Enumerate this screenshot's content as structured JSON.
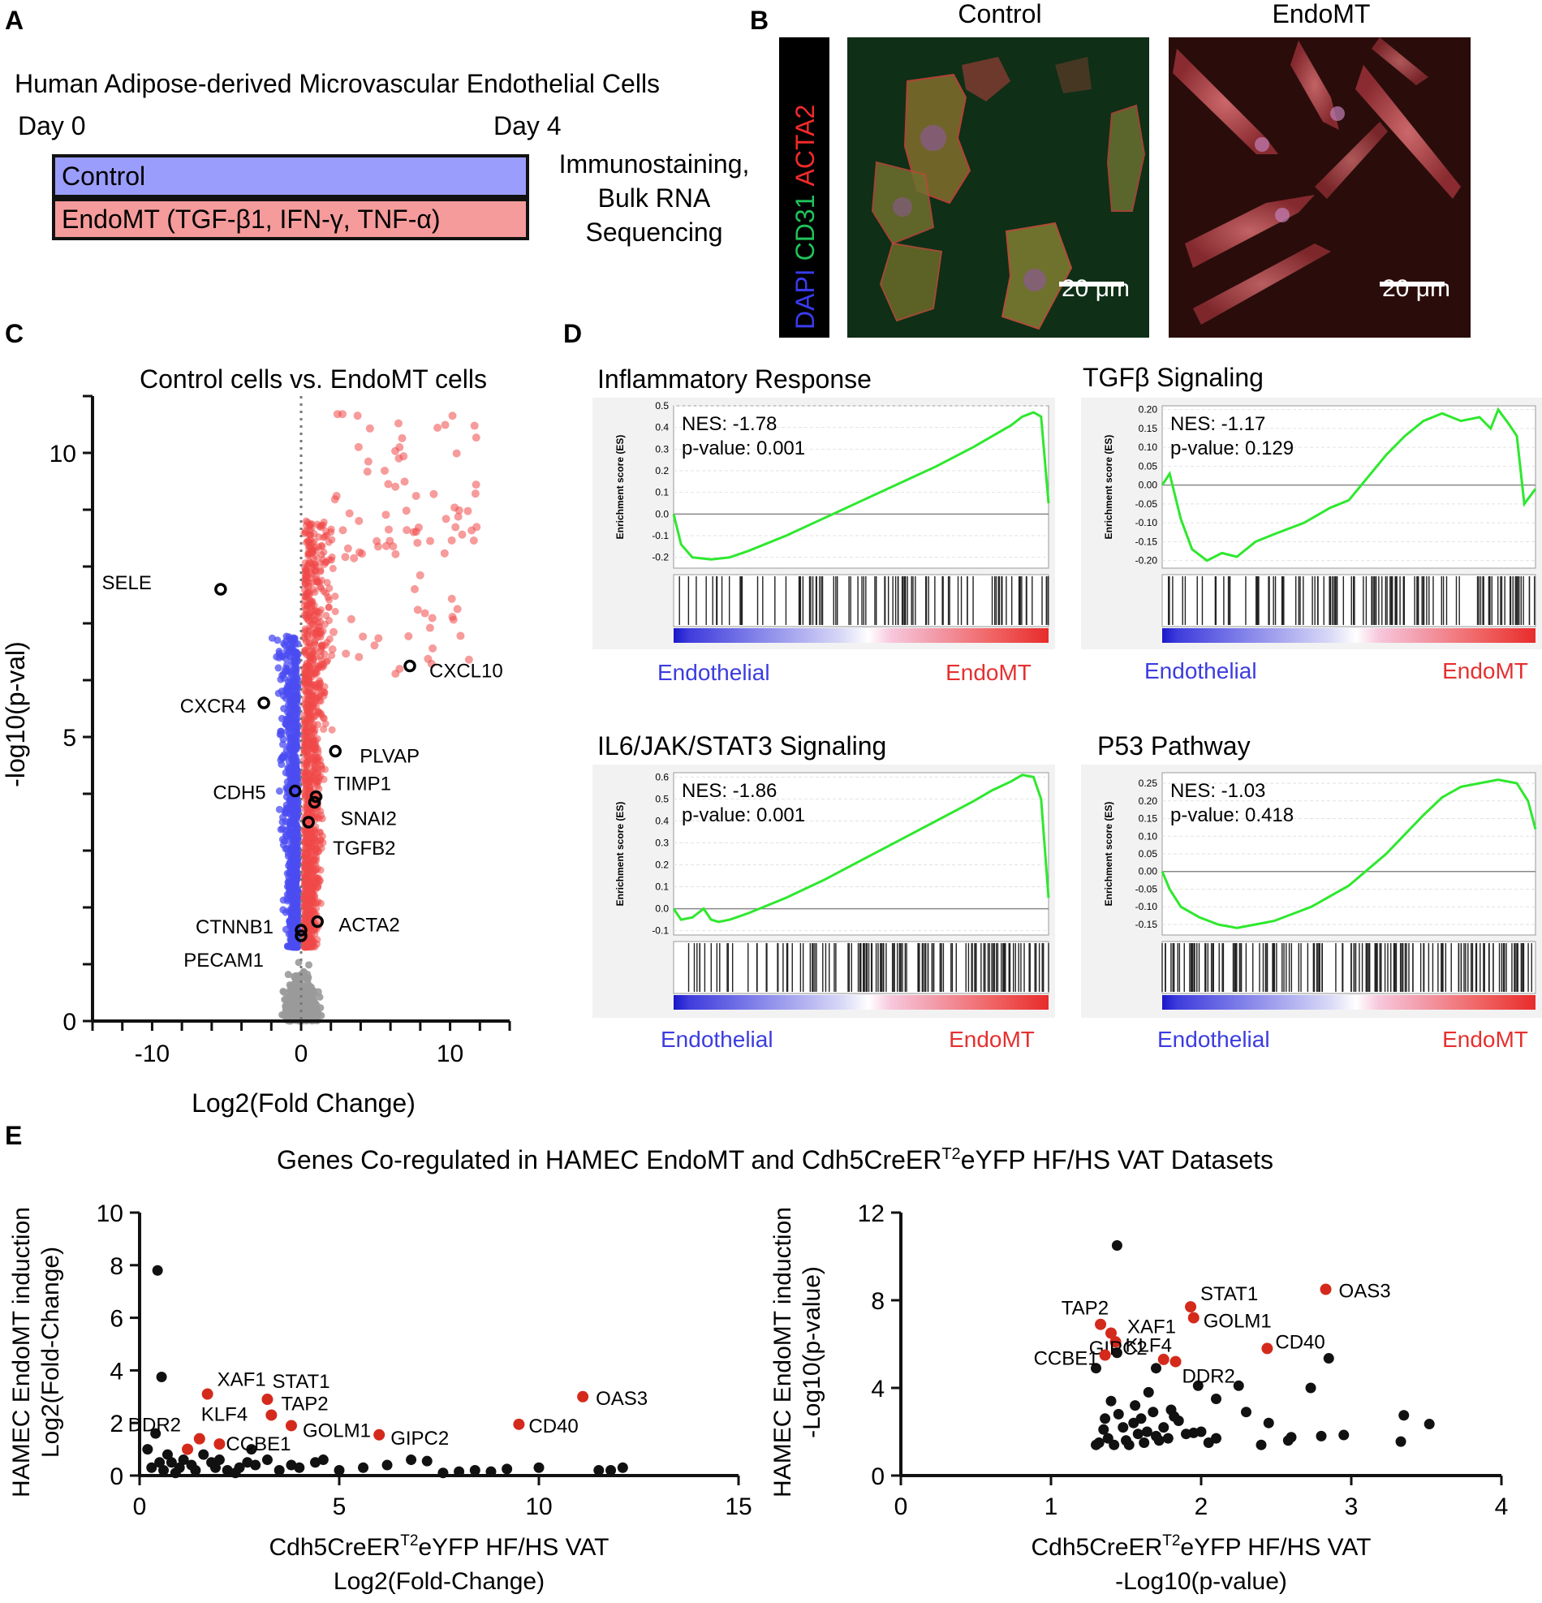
{
  "panel_a": {
    "letter": "A",
    "title": "Human Adipose-derived Microvascular Endothelial Cells",
    "day0": "Day 0",
    "day4": "Day 4",
    "control_label": "Control",
    "endo_label": "EndoMT (TGF-β1, IFN-γ, TNF-α)",
    "readout_lines": [
      "Immunostaining,",
      "Bulk RNA",
      "Sequencing"
    ],
    "colors": {
      "control": "#9a9dfb",
      "endomt": "#f59b9b"
    }
  },
  "panel_b": {
    "letter": "B",
    "stain_dapi": "DAPI",
    "stain_cd31": "CD31",
    "stain_acta2": "ACTA2",
    "col_control": "Control",
    "col_endomt": "EndoMT",
    "scale_bar": "20 μm",
    "colors": {
      "dapi": "#3a3cf2",
      "cd31": "#1fc35a",
      "acta2": "#f22a2a"
    }
  },
  "panel_c": {
    "letter": "C",
    "chart_data": {
      "type": "scatter",
      "title": "Control cells vs. EndoMT cells",
      "xlabel": "Log2(Fold Change)",
      "ylabel": "-log10(p-val)",
      "xlim": [
        -14,
        14
      ],
      "ylim": [
        0,
        11
      ],
      "x_ticks": [
        "-10",
        "0",
        "10"
      ],
      "y_ticks": [
        "0",
        "5",
        "10"
      ],
      "colors": {
        "down": "#4b4cf2",
        "up": "#f04848",
        "ns": "#9a9a9a"
      },
      "labeled_genes": [
        {
          "gene": "SELE",
          "x": -5.4,
          "y": 7.6
        },
        {
          "gene": "CXCL10",
          "x": 7.3,
          "y": 6.25
        },
        {
          "gene": "CXCR4",
          "x": -2.5,
          "y": 5.6
        },
        {
          "gene": "PLVAP",
          "x": 2.3,
          "y": 4.75
        },
        {
          "gene": "CDH5",
          "x": -0.4,
          "y": 4.05
        },
        {
          "gene": "TIMP1",
          "x": 1.0,
          "y": 3.95
        },
        {
          "gene": "SNAI2",
          "x": 0.9,
          "y": 3.85
        },
        {
          "gene": "TGFB2",
          "x": 0.5,
          "y": 3.5
        },
        {
          "gene": "CTNNB1",
          "x": 0.0,
          "y": 1.6
        },
        {
          "gene": "PECAM1",
          "x": 0.0,
          "y": 1.5
        },
        {
          "gene": "ACTA2",
          "x": 1.1,
          "y": 1.75
        }
      ]
    }
  },
  "panel_d": {
    "letter": "D",
    "ylabel": "Enrichment score (ES)",
    "left_group": "Endothelial",
    "right_group": "EndoMT",
    "chart_data": [
      {
        "type": "line",
        "title": "Inflammatory Response",
        "nes": "NES: -1.78",
        "pval": "p-value: 0.001",
        "ylim": [
          -0.25,
          0.5
        ],
        "y_ticks": [
          "0.5",
          "0.4",
          "0.3",
          "0.2",
          "0.1",
          "0.0",
          "-0.1",
          "-0.2"
        ],
        "x": [
          0,
          0.02,
          0.05,
          0.1,
          0.15,
          0.2,
          0.3,
          0.4,
          0.5,
          0.6,
          0.7,
          0.8,
          0.85,
          0.9,
          0.93,
          0.96,
          0.98,
          1.0
        ],
        "es": [
          0.0,
          -0.14,
          -0.2,
          -0.21,
          -0.2,
          -0.17,
          -0.1,
          -0.02,
          0.06,
          0.14,
          0.22,
          0.31,
          0.36,
          0.41,
          0.45,
          0.47,
          0.45,
          0.05
        ]
      },
      {
        "type": "line",
        "title": "TGFβ Signaling",
        "nes": "NES: -1.17",
        "pval": "p-value: 0.129",
        "ylim": [
          -0.22,
          0.21
        ],
        "y_ticks": [
          "0.20",
          "0.15",
          "0.10",
          "0.05",
          "0.00",
          "-0.05",
          "-0.10",
          "-0.15",
          "-0.20"
        ],
        "x": [
          0,
          0.02,
          0.05,
          0.08,
          0.12,
          0.16,
          0.2,
          0.25,
          0.3,
          0.38,
          0.45,
          0.5,
          0.55,
          0.6,
          0.65,
          0.7,
          0.75,
          0.8,
          0.85,
          0.88,
          0.9,
          0.93,
          0.95,
          0.97,
          1.0
        ],
        "es": [
          0.0,
          0.03,
          -0.09,
          -0.17,
          -0.2,
          -0.18,
          -0.19,
          -0.15,
          -0.13,
          -0.1,
          -0.06,
          -0.04,
          0.02,
          0.08,
          0.13,
          0.17,
          0.19,
          0.17,
          0.18,
          0.15,
          0.2,
          0.16,
          0.13,
          -0.05,
          -0.01
        ]
      },
      {
        "type": "line",
        "title": "IL6/JAK/STAT3 Signaling",
        "nes": "NES: -1.86",
        "pval": "p-value: 0.001",
        "ylim": [
          -0.12,
          0.62
        ],
        "y_ticks": [
          "0.6",
          "0.5",
          "0.4",
          "0.3",
          "0.2",
          "0.1",
          "0.0",
          "-0.1"
        ],
        "x": [
          0,
          0.02,
          0.05,
          0.08,
          0.1,
          0.12,
          0.15,
          0.2,
          0.3,
          0.4,
          0.5,
          0.6,
          0.7,
          0.8,
          0.85,
          0.9,
          0.93,
          0.96,
          0.98,
          1.0
        ],
        "es": [
          0.0,
          -0.05,
          -0.04,
          0.0,
          -0.05,
          -0.06,
          -0.05,
          -0.02,
          0.05,
          0.13,
          0.22,
          0.31,
          0.4,
          0.49,
          0.54,
          0.58,
          0.61,
          0.6,
          0.5,
          0.05
        ]
      },
      {
        "type": "line",
        "title": "P53 Pathway",
        "nes": "NES: -1.03",
        "pval": "p-value: 0.418",
        "ylim": [
          -0.18,
          0.28
        ],
        "y_ticks": [
          "0.25",
          "0.20",
          "0.15",
          "0.10",
          "0.05",
          "0.00",
          "-0.05",
          "-0.10",
          "-0.15"
        ],
        "x": [
          0,
          0.02,
          0.05,
          0.1,
          0.15,
          0.2,
          0.25,
          0.3,
          0.4,
          0.5,
          0.6,
          0.7,
          0.75,
          0.8,
          0.85,
          0.9,
          0.95,
          0.98,
          1.0
        ],
        "es": [
          0.0,
          -0.05,
          -0.1,
          -0.13,
          -0.15,
          -0.16,
          -0.15,
          -0.14,
          -0.1,
          -0.04,
          0.05,
          0.16,
          0.21,
          0.24,
          0.25,
          0.26,
          0.25,
          0.2,
          0.12
        ]
      }
    ]
  },
  "panel_e": {
    "letter": "E",
    "title_pre": "Genes Co-regulated in HAMEC EndoMT and Cdh5CreER",
    "title_sup": "T2",
    "title_post": "eYFP HF/HS VAT Datasets",
    "xlab_pre": "Cdh5CreER",
    "xlab_sup": "T2",
    "xlab_post": "eYFP HF/HS VAT",
    "colors": {
      "highlight": "#d42a1c",
      "other": "#111111"
    },
    "chart_data": [
      {
        "type": "scatter",
        "xlabel": "Log2(Fold-Change)",
        "ylabel_lines": [
          "HAMEC EndoMT induction",
          "Log2(Fold-Change)"
        ],
        "xlim": [
          0,
          15
        ],
        "ylim": [
          0,
          10
        ],
        "x_ticks": [
          "0",
          "5",
          "10",
          "15"
        ],
        "y_ticks": [
          "0",
          "2",
          "4",
          "6",
          "8",
          "10"
        ],
        "highlighted": [
          {
            "gene": "XAF1",
            "x": 1.7,
            "y": 3.1
          },
          {
            "gene": "STAT1",
            "x": 3.2,
            "y": 2.9
          },
          {
            "gene": "TAP2",
            "x": 3.3,
            "y": 2.3
          },
          {
            "gene": "GOLM1",
            "x": 3.8,
            "y": 1.9
          },
          {
            "gene": "GIPC2",
            "x": 6.0,
            "y": 1.55
          },
          {
            "gene": "CD40",
            "x": 9.5,
            "y": 1.95
          },
          {
            "gene": "OAS3",
            "x": 11.1,
            "y": 3.0
          },
          {
            "gene": "DDR2",
            "x": 1.2,
            "y": 1.0
          },
          {
            "gene": "KLF4",
            "x": 1.5,
            "y": 1.4
          },
          {
            "gene": "CCBE1",
            "x": 2.0,
            "y": 1.2
          }
        ],
        "other_points": [
          [
            0.45,
            7.8
          ],
          [
            0.55,
            3.75
          ],
          [
            0.2,
            1.0
          ],
          [
            0.4,
            1.6
          ],
          [
            0.3,
            0.3
          ],
          [
            0.6,
            0.2
          ],
          [
            0.8,
            0.5
          ],
          [
            1.0,
            0.3
          ],
          [
            1.3,
            0.4
          ],
          [
            1.6,
            0.8
          ],
          [
            1.9,
            0.3
          ],
          [
            2.2,
            0.2
          ],
          [
            2.5,
            0.3
          ],
          [
            2.8,
            1.0
          ],
          [
            2.7,
            0.5
          ],
          [
            3.2,
            0.6
          ],
          [
            3.8,
            0.4
          ],
          [
            4.0,
            0.3
          ],
          [
            4.4,
            0.5
          ],
          [
            4.6,
            0.6
          ],
          [
            5.0,
            0.2
          ],
          [
            5.6,
            0.3
          ],
          [
            6.2,
            0.4
          ],
          [
            6.8,
            0.6
          ],
          [
            7.2,
            0.55
          ],
          [
            7.6,
            0.1
          ],
          [
            8.0,
            0.15
          ],
          [
            8.4,
            0.2
          ],
          [
            8.8,
            0.15
          ],
          [
            9.2,
            0.25
          ],
          [
            10.0,
            0.3
          ],
          [
            11.5,
            0.2
          ],
          [
            11.8,
            0.2
          ],
          [
            12.1,
            0.3
          ],
          [
            0.7,
            0.8
          ],
          [
            1.1,
            0.6
          ],
          [
            1.4,
            0.2
          ],
          [
            2.0,
            0.6
          ],
          [
            2.4,
            0.1
          ],
          [
            3.5,
            0.2
          ],
          [
            0.9,
            0.1
          ],
          [
            1.8,
            0.5
          ],
          [
            0.5,
            0.5
          ],
          [
            2.9,
            0.4
          ]
        ]
      },
      {
        "type": "scatter",
        "xlabel": "-Log10(p-value)",
        "ylabel_lines": [
          "HAMEC EndoMT induction",
          "-Log10(p-value)"
        ],
        "xlim": [
          0,
          4
        ],
        "ylim": [
          0,
          12
        ],
        "x_ticks": [
          "0",
          "1",
          "2",
          "3",
          "4"
        ],
        "y_ticks": [
          "0",
          "4",
          "8",
          "12"
        ],
        "highlighted": [
          {
            "gene": "TAP2",
            "x": 1.33,
            "y": 6.9
          },
          {
            "gene": "STAT1",
            "x": 1.93,
            "y": 7.7
          },
          {
            "gene": "GOLM1",
            "x": 1.95,
            "y": 7.2
          },
          {
            "gene": "XAF1",
            "x": 1.4,
            "y": 6.5
          },
          {
            "gene": "KLF4",
            "x": 1.43,
            "y": 6.1
          },
          {
            "gene": "OAS3",
            "x": 2.83,
            "y": 8.5
          },
          {
            "gene": "CD40",
            "x": 2.44,
            "y": 5.8
          },
          {
            "gene": "GIPC2",
            "x": 1.75,
            "y": 5.3
          },
          {
            "gene": "DDR2",
            "x": 1.83,
            "y": 5.2
          },
          {
            "gene": "CCBE1",
            "x": 1.36,
            "y": 5.5
          }
        ],
        "other_points": [
          [
            1.44,
            10.5
          ],
          [
            1.3,
            4.9
          ],
          [
            1.44,
            5.6
          ],
          [
            1.7,
            4.9
          ],
          [
            1.98,
            4.1
          ],
          [
            2.1,
            3.5
          ],
          [
            2.25,
            4.1
          ],
          [
            2.85,
            5.35
          ],
          [
            2.73,
            4.0
          ],
          [
            3.35,
            2.75
          ],
          [
            3.52,
            2.35
          ],
          [
            3.33,
            1.55
          ],
          [
            2.95,
            1.85
          ],
          [
            2.8,
            1.8
          ],
          [
            2.6,
            1.75
          ],
          [
            2.45,
            2.4
          ],
          [
            2.3,
            2.9
          ],
          [
            2.1,
            1.7
          ],
          [
            1.95,
            1.95
          ],
          [
            1.9,
            1.9
          ],
          [
            1.85,
            2.5
          ],
          [
            1.8,
            3.0
          ],
          [
            1.75,
            2.2
          ],
          [
            1.7,
            1.8
          ],
          [
            1.65,
            3.8
          ],
          [
            1.6,
            2.6
          ],
          [
            1.58,
            1.9
          ],
          [
            1.55,
            2.4
          ],
          [
            1.5,
            1.6
          ],
          [
            1.45,
            2.8
          ],
          [
            1.42,
            1.4
          ],
          [
            1.4,
            3.4
          ],
          [
            1.38,
            1.7
          ],
          [
            1.35,
            2.1
          ],
          [
            1.32,
            1.5
          ],
          [
            1.3,
            1.4
          ],
          [
            1.52,
            1.4
          ],
          [
            1.62,
            1.5
          ],
          [
            1.68,
            2.9
          ],
          [
            1.72,
            1.6
          ],
          [
            2.0,
            2.0
          ],
          [
            2.05,
            1.5
          ],
          [
            2.4,
            1.4
          ],
          [
            2.58,
            1.6
          ],
          [
            1.48,
            2.2
          ],
          [
            1.56,
            3.2
          ],
          [
            1.64,
            2.0
          ],
          [
            1.78,
            1.7
          ],
          [
            1.82,
            2.7
          ],
          [
            1.36,
            2.6
          ]
        ]
      }
    ]
  }
}
